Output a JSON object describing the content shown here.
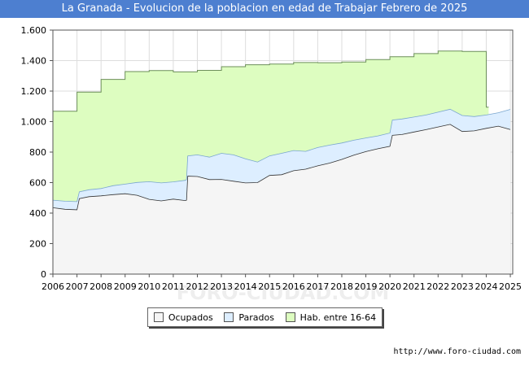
{
  "chart_data": {
    "type": "area",
    "title": "La Granada - Evolucion de la poblacion en edad de Trabajar Febrero de 2025",
    "ylim": [
      0,
      1600
    ],
    "yticks": [
      0,
      200,
      400,
      600,
      800,
      1000,
      1200,
      1400,
      1600
    ],
    "ytick_labels": [
      "0",
      "200",
      "400",
      "600",
      "800",
      "1.000",
      "1.200",
      "1.400",
      "1.600"
    ],
    "xlim": [
      2006,
      2025.1
    ],
    "xticks": [
      2006,
      2007,
      2008,
      2009,
      2010,
      2011,
      2012,
      2013,
      2014,
      2015,
      2016,
      2017,
      2018,
      2019,
      2020,
      2021,
      2022,
      2023,
      2024,
      2025
    ],
    "grid": true,
    "series": [
      {
        "name": "Hab. entre 16-64",
        "step": true,
        "x": [
          2006,
          2007,
          2008,
          2009,
          2010,
          2011,
          2012,
          2013,
          2014,
          2015,
          2016,
          2017,
          2018,
          2019,
          2020,
          2021,
          2022,
          2023,
          2024
        ],
        "values": [
          1068,
          1193,
          1277,
          1328,
          1335,
          1326,
          1336,
          1360,
          1373,
          1377,
          1387,
          1386,
          1391,
          1407,
          1425,
          1446,
          1463,
          1460,
          1095
        ]
      },
      {
        "name": "Parados",
        "x": [
          2006,
          2006.5,
          2007,
          2007.1,
          2007.5,
          2008,
          2008.5,
          2009,
          2009.5,
          2010,
          2010.5,
          2011,
          2011.5,
          2011.55,
          2011.6,
          2012,
          2012.5,
          2013,
          2013.5,
          2014,
          2014.5,
          2015,
          2015.5,
          2016,
          2016.5,
          2017,
          2017.5,
          2018,
          2018.5,
          2019,
          2019.5,
          2020,
          2020.1,
          2020.5,
          2021,
          2021.5,
          2022,
          2022.5,
          2023,
          2023.5,
          2024,
          2024.5,
          2025
        ],
        "values": [
          485,
          478,
          475,
          540,
          553,
          561,
          580,
          590,
          601,
          606,
          598,
          605,
          615,
          620,
          775,
          782,
          767,
          792,
          782,
          756,
          735,
          775,
          792,
          810,
          805,
          830,
          846,
          860,
          878,
          893,
          906,
          925,
          1010,
          1017,
          1030,
          1043,
          1062,
          1081,
          1040,
          1033,
          1043,
          1058,
          1080
        ]
      },
      {
        "name": "Ocupados",
        "x": [
          2006,
          2006.5,
          2007,
          2007.1,
          2007.5,
          2008,
          2008.5,
          2009,
          2009.5,
          2010,
          2010.5,
          2011,
          2011.5,
          2011.55,
          2011.6,
          2012,
          2012.5,
          2013,
          2013.5,
          2014,
          2014.5,
          2015,
          2015.5,
          2016,
          2016.5,
          2017,
          2017.5,
          2018,
          2018.5,
          2019,
          2019.5,
          2020,
          2020.1,
          2020.5,
          2021,
          2021.5,
          2022,
          2022.5,
          2023,
          2023.5,
          2024,
          2024.5,
          2025
        ],
        "values": [
          435,
          425,
          422,
          495,
          508,
          513,
          521,
          527,
          517,
          490,
          480,
          492,
          482,
          485,
          642,
          640,
          620,
          621,
          609,
          598,
          600,
          647,
          652,
          678,
          688,
          710,
          728,
          752,
          780,
          803,
          822,
          838,
          910,
          915,
          932,
          947,
          965,
          982,
          935,
          939,
          956,
          970,
          948
        ]
      }
    ],
    "legend": {
      "position": "bottom",
      "items": [
        {
          "label": "Ocupados",
          "color": "#f5f5f5"
        },
        {
          "label": "Parados",
          "color": "#ddeeff"
        },
        {
          "label": "Hab. entre 16-64",
          "color": "#ddfdc0"
        }
      ]
    },
    "colors": {
      "hab_fill": "#ddfdc0",
      "hab_line": "#6d8f5a",
      "parados_fill": "#ddeeff",
      "parados_line": "#7aa6cf",
      "ocupados_fill": "#f5f5f5",
      "ocupados_line": "#333333",
      "title_bg": "#4d7fd0"
    }
  },
  "footer": {
    "url": "http://www.foro-ciudad.com"
  },
  "watermark": "FORO-CIUDAD.COM"
}
